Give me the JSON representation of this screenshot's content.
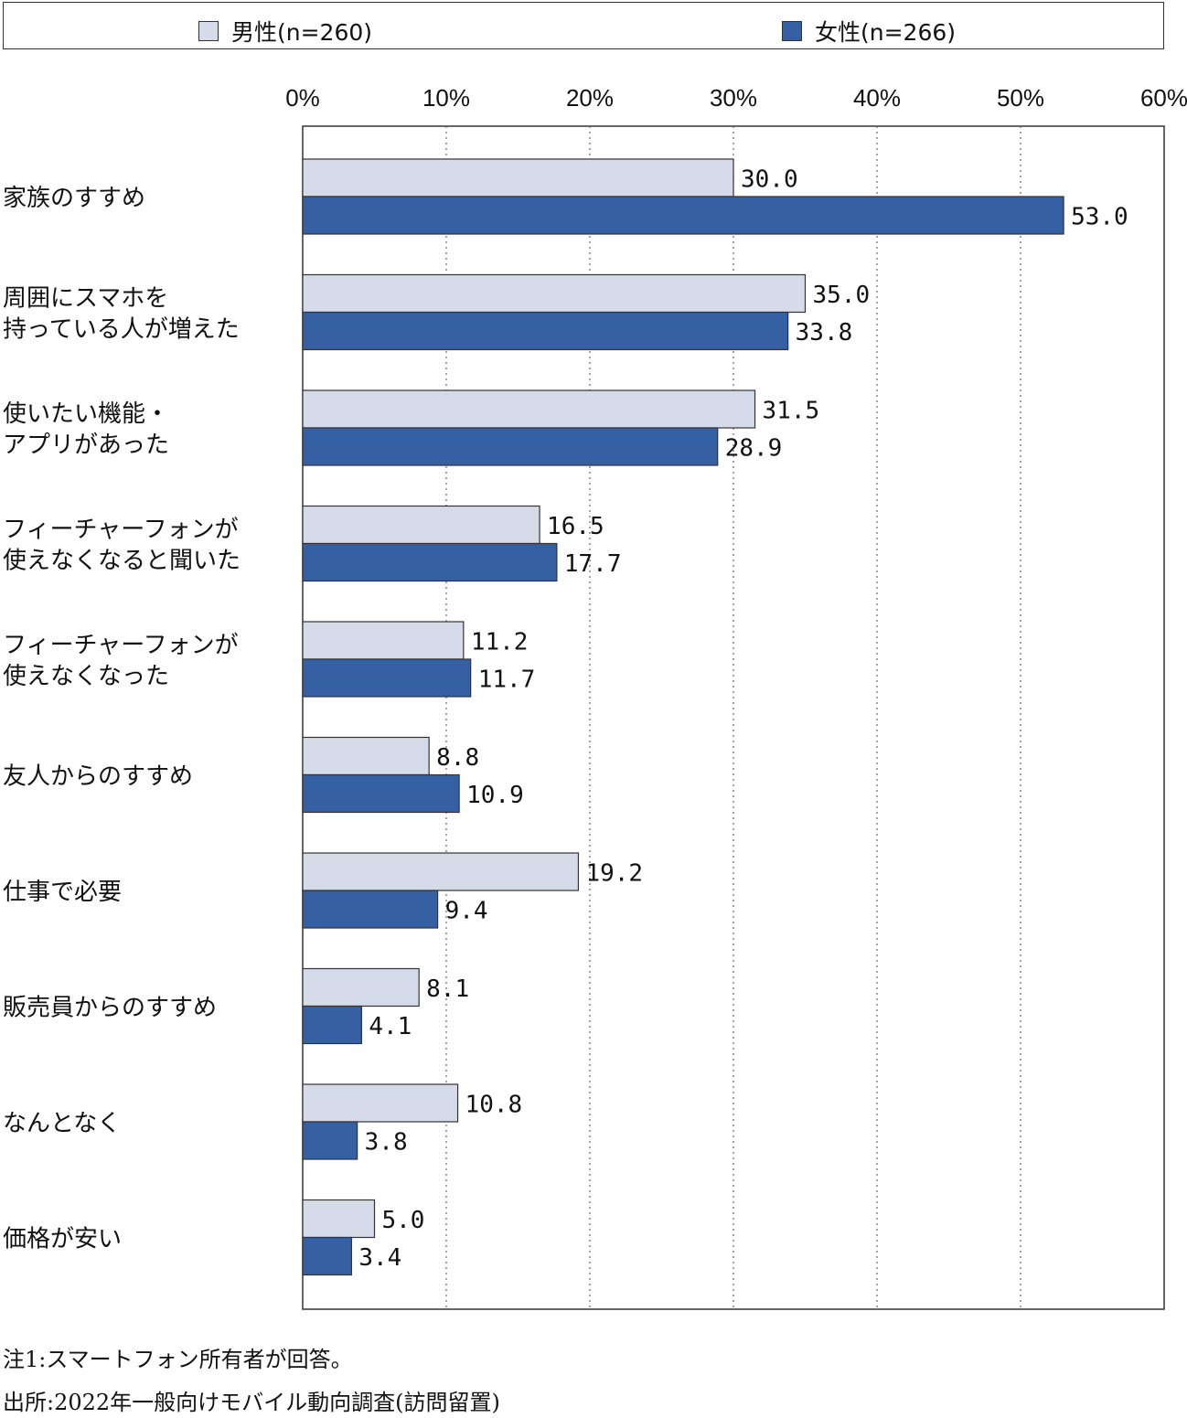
{
  "legend": {
    "male": {
      "label": "男性(n=260)",
      "color": "#d6dbea"
    },
    "female": {
      "label": "女性(n=266)",
      "color": "#3560a3"
    }
  },
  "chart_data": {
    "type": "bar",
    "orientation": "horizontal",
    "xlim": [
      0,
      60
    ],
    "x_ticks": [
      "0%",
      "10%",
      "20%",
      "30%",
      "40%",
      "50%",
      "60%"
    ],
    "grid": "vertical dotted",
    "legend_position": "top",
    "categories": [
      [
        "家族のすすめ"
      ],
      [
        "周囲にスマホを",
        "持っている人が増えた"
      ],
      [
        "使いたい機能・",
        "アプリがあった"
      ],
      [
        "フィーチャーフォンが",
        "使えなくなると聞いた"
      ],
      [
        "フィーチャーフォンが",
        "使えなくなった"
      ],
      [
        "友人からのすすめ"
      ],
      [
        "仕事で必要"
      ],
      [
        "販売員からのすすめ"
      ],
      [
        "なんとなく"
      ],
      [
        "価格が安い"
      ]
    ],
    "series": [
      {
        "name": "男性(n=260)",
        "color": "#d6dbea",
        "values": [
          30.0,
          35.0,
          31.5,
          16.5,
          11.2,
          8.8,
          19.2,
          8.1,
          10.8,
          5.0
        ]
      },
      {
        "name": "女性(n=266)",
        "color": "#3560a3",
        "values": [
          53.0,
          33.8,
          28.9,
          17.7,
          11.7,
          10.9,
          9.4,
          4.1,
          3.8,
          3.4
        ]
      }
    ]
  },
  "notes": {
    "note1": "注1:スマートフォン所有者が回答。",
    "source": "出所:2022年一般向けモバイル動向調査(訪問留置)"
  }
}
